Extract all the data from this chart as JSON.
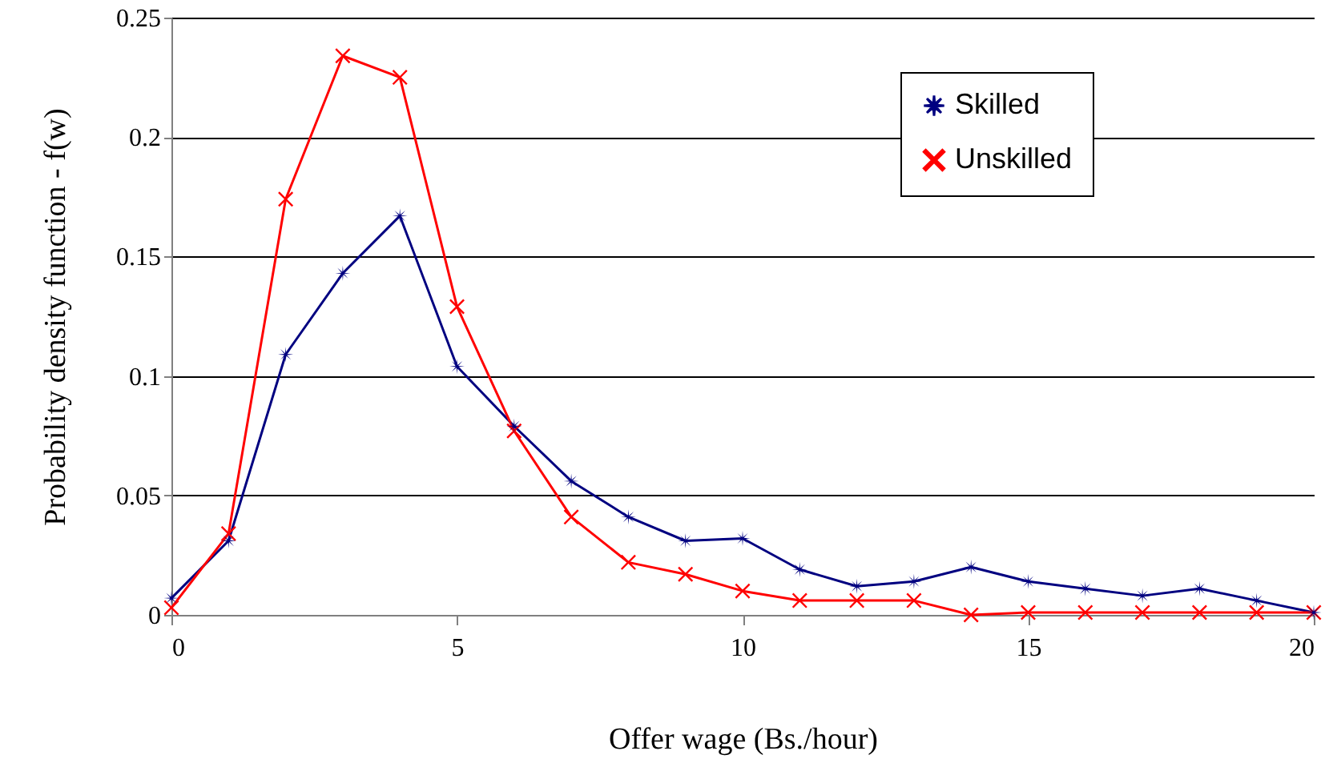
{
  "chart_data": {
    "type": "line",
    "xlabel": "Offer wage (Bs./hour)",
    "ylabel": "Probability density function - f(w)",
    "x": [
      0,
      1,
      2,
      3,
      4,
      5,
      6,
      7,
      8,
      9,
      10,
      11,
      12,
      13,
      14,
      15,
      16,
      17,
      18,
      19,
      20
    ],
    "series": [
      {
        "name": "Skilled",
        "color": "#000080",
        "marker": "star",
        "values": [
          0.007,
          0.031,
          0.109,
          0.143,
          0.167,
          0.104,
          0.079,
          0.056,
          0.041,
          0.031,
          0.032,
          0.019,
          0.012,
          0.014,
          0.02,
          0.014,
          0.011,
          0.008,
          0.011,
          0.006,
          0.001
        ]
      },
      {
        "name": "Unskilled",
        "color": "#ff0000",
        "marker": "cross",
        "values": [
          0.003,
          0.034,
          0.174,
          0.234,
          0.225,
          0.129,
          0.077,
          0.041,
          0.022,
          0.017,
          0.01,
          0.006,
          0.006,
          0.006,
          0.0,
          0.001,
          0.001,
          0.001,
          0.001,
          0.001,
          0.001
        ]
      }
    ],
    "xlim": [
      0,
      20
    ],
    "xticks": [
      0,
      5,
      10,
      15,
      20
    ],
    "ylim": [
      0,
      0.25
    ],
    "yticks": [
      0,
      0.05,
      0.1,
      0.15,
      0.2,
      0.25
    ],
    "grid": "y",
    "legend": "top right",
    "line_style": "solid"
  }
}
